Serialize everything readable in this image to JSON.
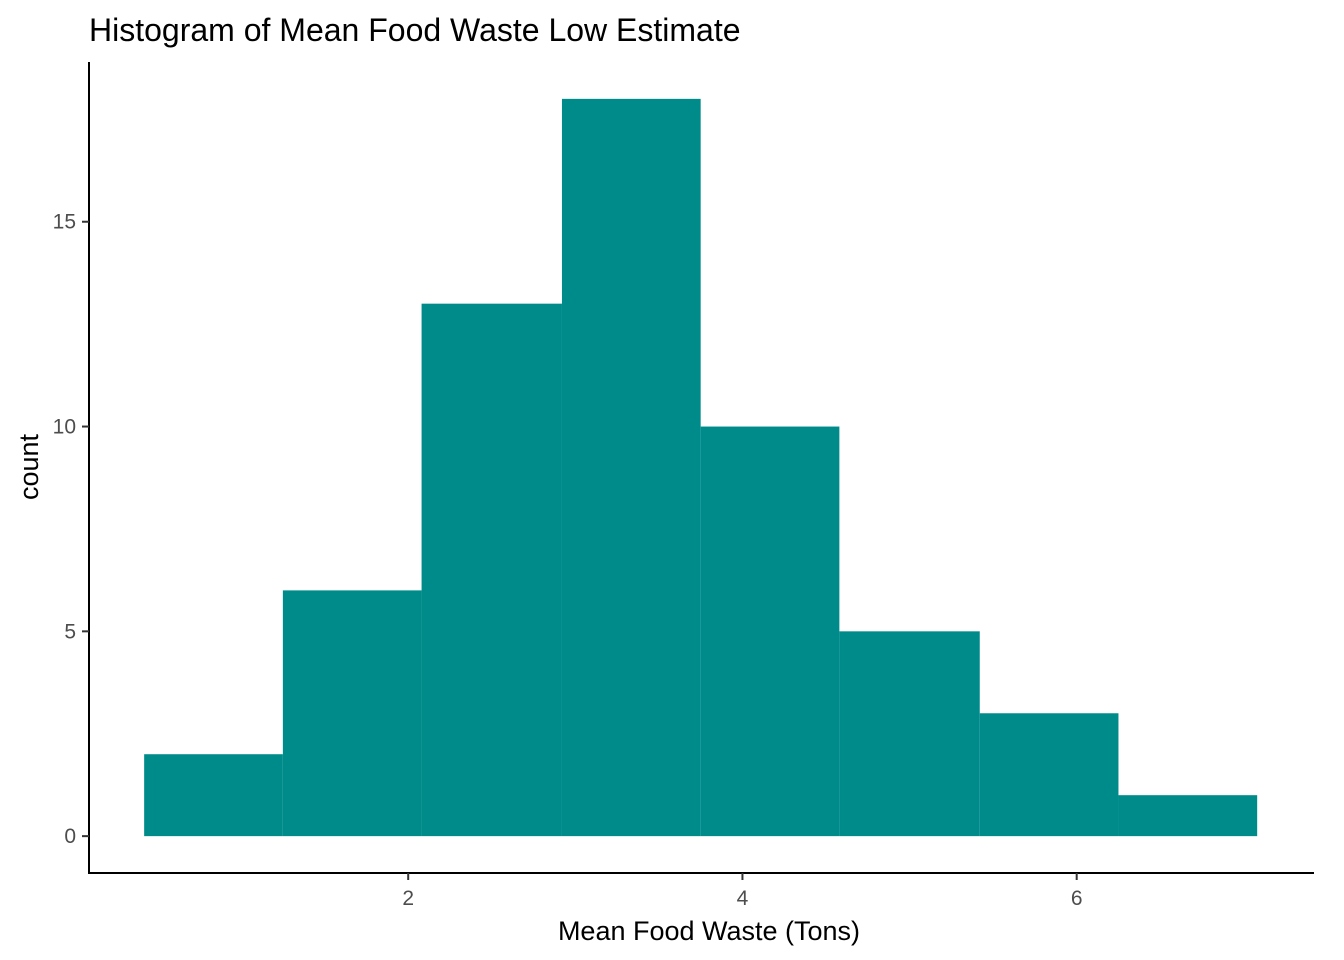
{
  "chart_data": {
    "type": "bar",
    "title": "Histogram of Mean Food Waste Low Estimate",
    "xlabel": "Mean Food Waste (Tons)",
    "ylabel": "count",
    "bin_edges": [
      0.42,
      1.25,
      2.08,
      2.92,
      3.75,
      4.58,
      5.42,
      6.25,
      7.08
    ],
    "values": [
      2,
      6,
      13,
      18,
      10,
      5,
      3,
      1
    ],
    "xlim": [
      0.09,
      7.42
    ],
    "ylim": [
      -0.9,
      18.9
    ],
    "xticks": [
      2,
      4,
      6
    ],
    "yticks": [
      0,
      5,
      10,
      15
    ],
    "bar_color": "#008B8B",
    "grid": false,
    "legend": "none"
  }
}
